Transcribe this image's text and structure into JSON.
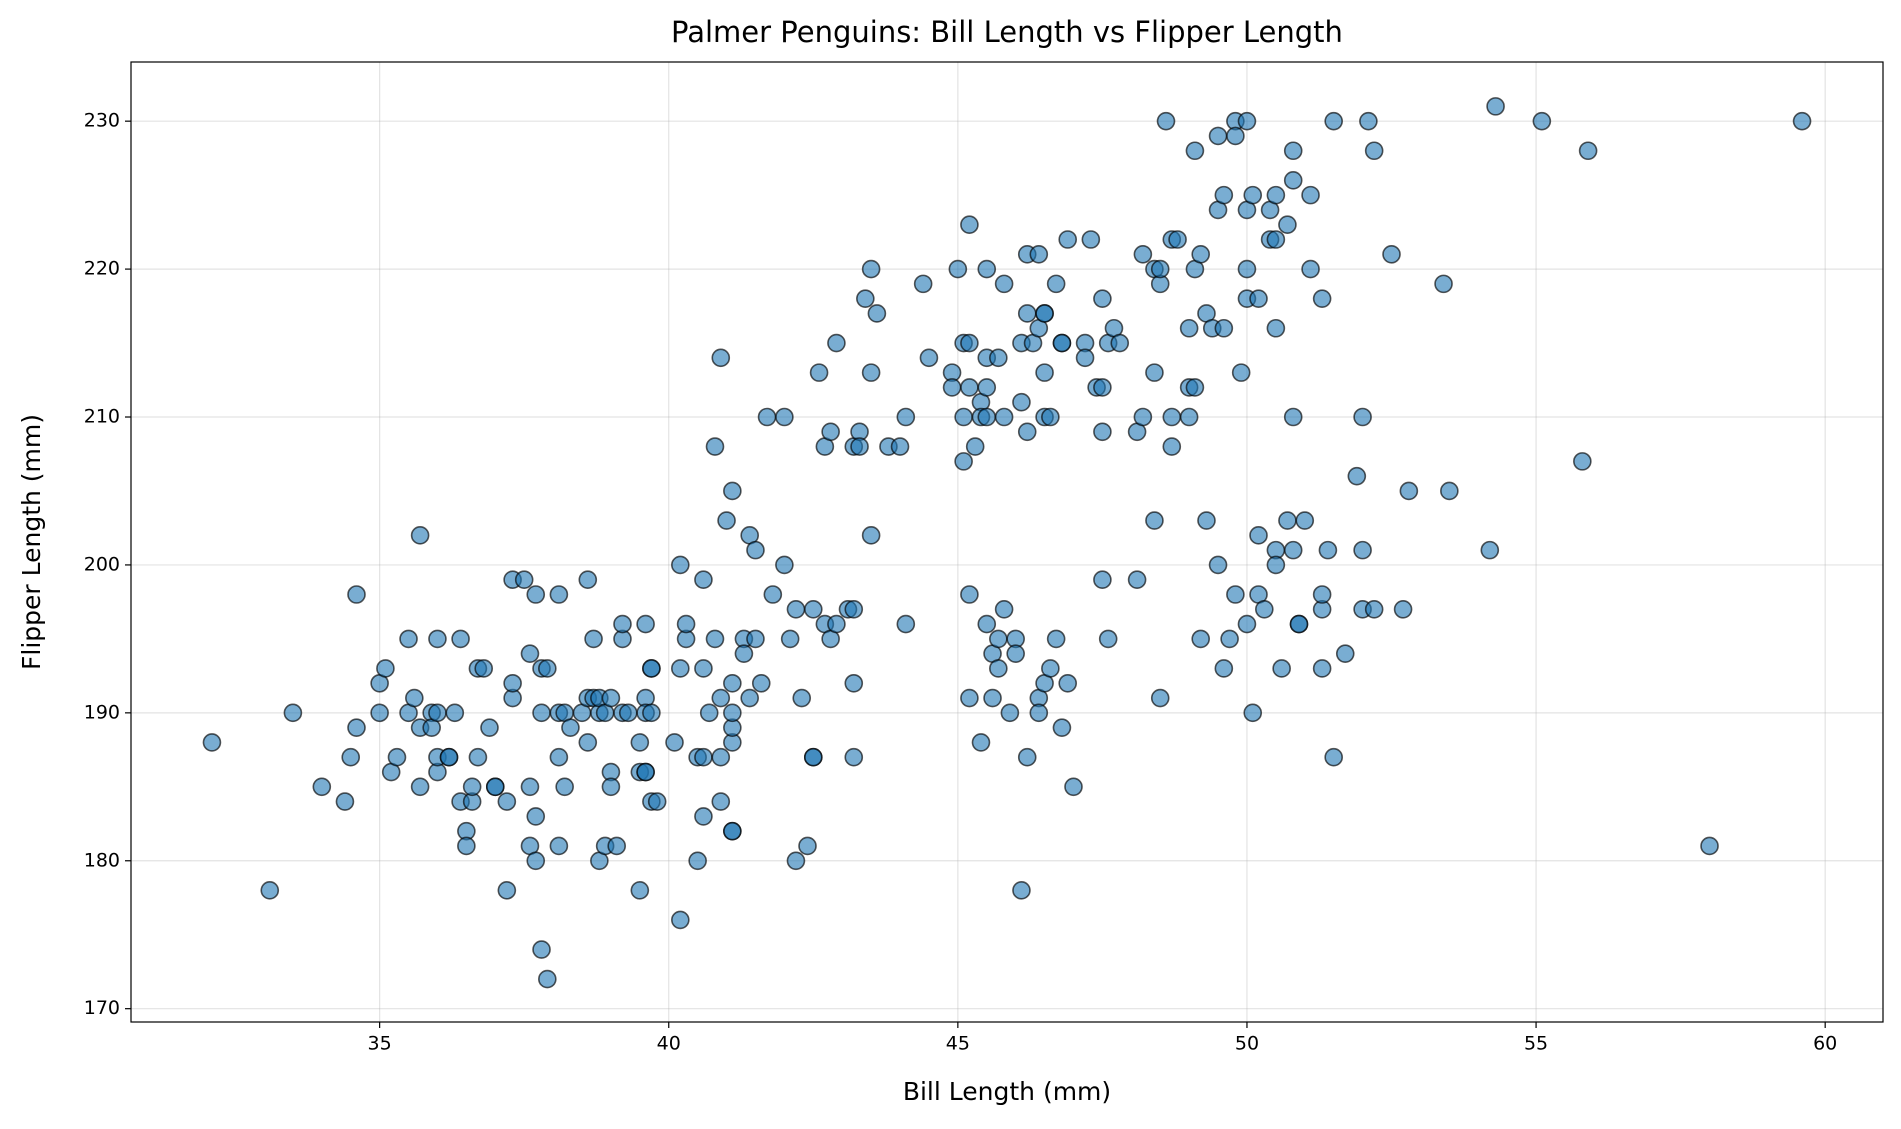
{
  "chart_data": {
    "type": "scatter",
    "title": "Palmer Penguins: Bill Length vs Flipper Length",
    "x_label": "Bill Length (mm)",
    "y_label": "Flipper Length (mm)",
    "color": "#1f77b4",
    "grid": true,
    "xlim": [
      30.7,
      61.0
    ],
    "ylim": [
      169.1,
      234.0
    ],
    "xticks": [
      35,
      40,
      45,
      50,
      55,
      60
    ],
    "yticks": [
      170,
      180,
      190,
      200,
      210,
      220,
      230
    ],
    "x": [
      32.1,
      33.1,
      33.5,
      34.0,
      34.4,
      34.5,
      34.6,
      34.6,
      35.0,
      35.0,
      35.1,
      35.2,
      35.3,
      35.5,
      35.5,
      35.6,
      35.7,
      35.7,
      35.7,
      35.9,
      35.9,
      36.0,
      36.0,
      36.0,
      36.0,
      36.2,
      36.2,
      36.3,
      36.4,
      36.4,
      36.5,
      36.5,
      36.6,
      36.6,
      36.7,
      36.7,
      36.8,
      36.9,
      37.0,
      37.0,
      37.2,
      37.2,
      37.3,
      37.3,
      37.3,
      37.5,
      37.6,
      37.6,
      37.6,
      37.7,
      37.7,
      37.7,
      37.8,
      37.8,
      37.8,
      37.9,
      37.9,
      38.1,
      38.1,
      38.1,
      38.1,
      38.2,
      38.2,
      38.3,
      38.5,
      38.6,
      38.6,
      38.6,
      38.7,
      38.7,
      38.8,
      38.8,
      38.8,
      38.9,
      38.9,
      39.0,
      39.0,
      39.0,
      39.1,
      39.2,
      39.2,
      39.2,
      39.3,
      39.5,
      39.5,
      39.5,
      39.6,
      39.6,
      39.6,
      39.6,
      39.6,
      39.7,
      39.7,
      39.7,
      39.7,
      39.8,
      40.1,
      40.2,
      40.2,
      40.2,
      40.3,
      40.3,
      40.5,
      40.5,
      40.6,
      40.6,
      40.6,
      40.6,
      40.7,
      40.8,
      40.8,
      40.9,
      40.9,
      40.9,
      40.9,
      41.0,
      41.1,
      41.1,
      41.1,
      41.1,
      41.1,
      41.1,
      41.1,
      41.3,
      41.3,
      41.4,
      41.4,
      41.5,
      41.5,
      41.6,
      41.7,
      41.8,
      42.0,
      42.0,
      42.1,
      42.2,
      42.2,
      42.3,
      42.4,
      42.5,
      42.5,
      42.5,
      42.6,
      42.7,
      42.7,
      42.8,
      42.8,
      42.9,
      42.9,
      43.1,
      43.2,
      43.2,
      43.2,
      43.2,
      43.3,
      43.3,
      43.4,
      43.5,
      43.5,
      43.5,
      43.6,
      43.8,
      44.0,
      44.1,
      44.1,
      44.4,
      44.5,
      44.9,
      44.9,
      45.0,
      45.1,
      45.1,
      45.1,
      45.2,
      45.2,
      45.2,
      45.2,
      45.2,
      45.3,
      45.4,
      45.4,
      45.4,
      45.5,
      45.5,
      45.5,
      45.5,
      45.5,
      45.6,
      45.6,
      45.7,
      45.7,
      45.7,
      45.8,
      45.8,
      45.8,
      45.9,
      46.0,
      46.0,
      46.1,
      46.1,
      46.1,
      46.2,
      46.2,
      46.2,
      46.2,
      46.3,
      46.4,
      46.4,
      46.4,
      46.4,
      46.5,
      46.5,
      46.5,
      46.5,
      46.5,
      46.6,
      46.6,
      46.7,
      46.7,
      46.8,
      46.8,
      46.8,
      46.9,
      46.9,
      47.0,
      47.2,
      47.2,
      47.3,
      47.4,
      47.5,
      47.5,
      47.5,
      47.5,
      47.6,
      47.6,
      47.7,
      47.8,
      48.1,
      48.1,
      48.2,
      48.2,
      48.4,
      48.4,
      48.4,
      48.5,
      48.5,
      48.5,
      48.6,
      48.7,
      48.7,
      48.7,
      48.8,
      49.0,
      49.0,
      49.0,
      49.1,
      49.1,
      49.1,
      49.2,
      49.2,
      49.3,
      49.3,
      49.4,
      49.5,
      49.5,
      49.5,
      49.6,
      49.6,
      49.6,
      49.7,
      49.8,
      49.8,
      49.8,
      49.9,
      50.0,
      50.0,
      50.0,
      50.0,
      50.0,
      50.1,
      50.1,
      50.2,
      50.2,
      50.2,
      50.3,
      50.4,
      50.4,
      50.5,
      50.5,
      50.5,
      50.5,
      50.5,
      50.6,
      50.7,
      50.7,
      50.8,
      50.8,
      50.8,
      50.8,
      50.9,
      50.9,
      51.0,
      51.1,
      51.1,
      51.3,
      51.3,
      51.3,
      51.3,
      51.4,
      51.5,
      51.5,
      51.7,
      51.9,
      52.0,
      52.0,
      52.0,
      52.1,
      52.2,
      52.2,
      52.5,
      52.7,
      52.8,
      53.4,
      53.5,
      54.2,
      54.3,
      55.1,
      55.8,
      55.9,
      58.0,
      59.6
    ],
    "values": [
      188,
      178,
      190,
      185,
      184,
      187,
      189,
      198,
      190,
      192,
      193,
      186,
      187,
      195,
      190,
      191,
      202,
      185,
      189,
      190,
      189,
      195,
      186,
      187,
      190,
      187,
      187,
      190,
      195,
      184,
      182,
      181,
      184,
      185,
      187,
      193,
      193,
      189,
      185,
      185,
      184,
      178,
      191,
      192,
      199,
      199,
      194,
      185,
      181,
      183,
      198,
      180,
      174,
      193,
      190,
      172,
      193,
      190,
      198,
      187,
      181,
      185,
      190,
      189,
      190,
      199,
      188,
      191,
      195,
      191,
      190,
      180,
      191,
      190,
      181,
      191,
      186,
      185,
      181,
      195,
      196,
      190,
      190,
      188,
      186,
      178,
      186,
      186,
      191,
      190,
      196,
      193,
      193,
      184,
      190,
      184,
      188,
      200,
      193,
      176,
      195,
      196,
      187,
      180,
      187,
      193,
      199,
      183,
      190,
      208,
      195,
      184,
      191,
      187,
      214,
      203,
      182,
      182,
      188,
      189,
      190,
      192,
      205,
      195,
      194,
      202,
      191,
      201,
      195,
      192,
      210,
      198,
      200,
      210,
      195,
      197,
      180,
      191,
      181,
      197,
      187,
      187,
      213,
      208,
      196,
      209,
      195,
      196,
      215,
      197,
      197,
      192,
      187,
      208,
      209,
      208,
      218,
      213,
      202,
      220,
      217,
      208,
      208,
      210,
      196,
      219,
      214,
      213,
      212,
      220,
      215,
      207,
      210,
      198,
      191,
      215,
      223,
      212,
      208,
      211,
      188,
      210,
      196,
      212,
      214,
      220,
      210,
      194,
      191,
      195,
      193,
      214,
      197,
      210,
      219,
      190,
      195,
      194,
      211,
      178,
      215,
      221,
      217,
      187,
      209,
      215,
      216,
      191,
      190,
      221,
      217,
      217,
      213,
      192,
      210,
      193,
      210,
      219,
      195,
      189,
      215,
      215,
      192,
      222,
      185,
      215,
      214,
      222,
      212,
      212,
      199,
      209,
      218,
      195,
      215,
      216,
      215,
      199,
      209,
      221,
      210,
      203,
      213,
      220,
      219,
      220,
      191,
      230,
      208,
      222,
      210,
      222,
      210,
      216,
      212,
      228,
      220,
      212,
      221,
      195,
      217,
      203,
      216,
      229,
      224,
      200,
      225,
      193,
      216,
      195,
      230,
      229,
      198,
      213,
      230,
      220,
      224,
      218,
      196,
      225,
      190,
      218,
      202,
      198,
      197,
      224,
      222,
      225,
      222,
      216,
      201,
      200,
      193,
      223,
      203,
      228,
      226,
      210,
      201,
      196,
      196,
      203,
      225,
      220,
      218,
      197,
      198,
      193,
      201,
      230,
      187,
      194,
      206,
      210,
      201,
      197,
      230,
      228,
      197,
      221,
      197,
      205,
      219,
      205,
      201,
      231,
      230,
      207,
      228,
      181,
      230
    ]
  }
}
